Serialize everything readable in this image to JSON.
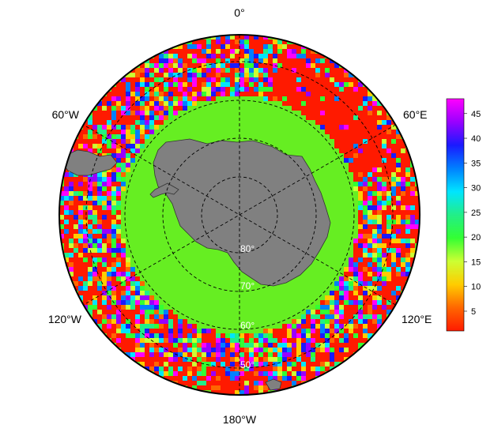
{
  "map": {
    "projection": "south-polar-stereographic",
    "longitude_labels": {
      "top": "0°",
      "upper_right": "60°E",
      "lower_right": "120°E",
      "bottom": "180°W",
      "lower_left": "120°W",
      "upper_left": "60°W"
    },
    "latitude_labels": [
      "80°",
      "70°",
      "60°",
      "50°"
    ],
    "land_color": "#808080",
    "ocean_background": "#66ee22",
    "grid_style": "dashed"
  },
  "colorbar": {
    "ticks": [
      "5",
      "10",
      "15",
      "20",
      "25",
      "30",
      "35",
      "40",
      "45"
    ],
    "min": 1,
    "max": 48,
    "colors": [
      "#ff1a00",
      "#ff6600",
      "#ffcc00",
      "#ccff33",
      "#33ff33",
      "#22ee88",
      "#00e5ff",
      "#0080ff",
      "#1a1aff",
      "#9900ff",
      "#ff00ff"
    ]
  }
}
